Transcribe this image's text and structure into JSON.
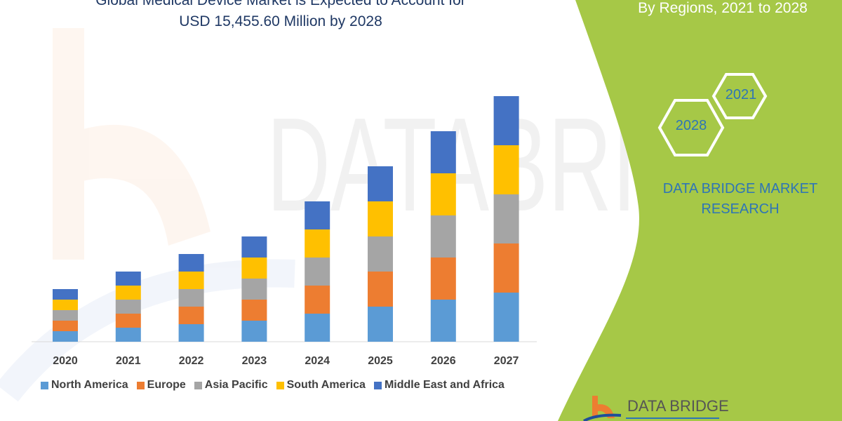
{
  "header": {
    "title_line1": "Global Medical Device Market is Expected to Account for",
    "title_line2": "USD  15,455.60 Million  by 2028"
  },
  "side_panel": {
    "subtitle": "By Regions, 2021 to 2028",
    "hex_years": [
      "2028",
      "2021"
    ],
    "brand": "DATA BRIDGE MARKET RESEARCH",
    "logo_text": "DATA BRIDGE",
    "panel_color": "#a6c847"
  },
  "chart_data": {
    "type": "bar",
    "stacked": true,
    "title": "",
    "xlabel": "",
    "ylabel": "",
    "y_axis_shown": false,
    "grid": false,
    "legend_position": "bottom",
    "categories": [
      "2020",
      "2021",
      "2022",
      "2023",
      "2024",
      "2025",
      "2026",
      "2027"
    ],
    "series": [
      {
        "name": "North America",
        "color": "#5b9bd5",
        "values": [
          3,
          4,
          5,
          6,
          8,
          10,
          12,
          14
        ]
      },
      {
        "name": "Europe",
        "color": "#ed7d31",
        "values": [
          3,
          4,
          5,
          6,
          8,
          10,
          12,
          14
        ]
      },
      {
        "name": "Asia Pacific",
        "color": "#a5a5a5",
        "values": [
          3,
          4,
          5,
          6,
          8,
          10,
          12,
          14
        ]
      },
      {
        "name": "South America",
        "color": "#ffc000",
        "values": [
          3,
          4,
          5,
          6,
          8,
          10,
          12,
          14
        ]
      },
      {
        "name": "Middle East and Africa",
        "color": "#4472c4",
        "values": [
          3,
          4,
          5,
          6,
          8,
          10,
          12,
          14
        ]
      }
    ]
  }
}
